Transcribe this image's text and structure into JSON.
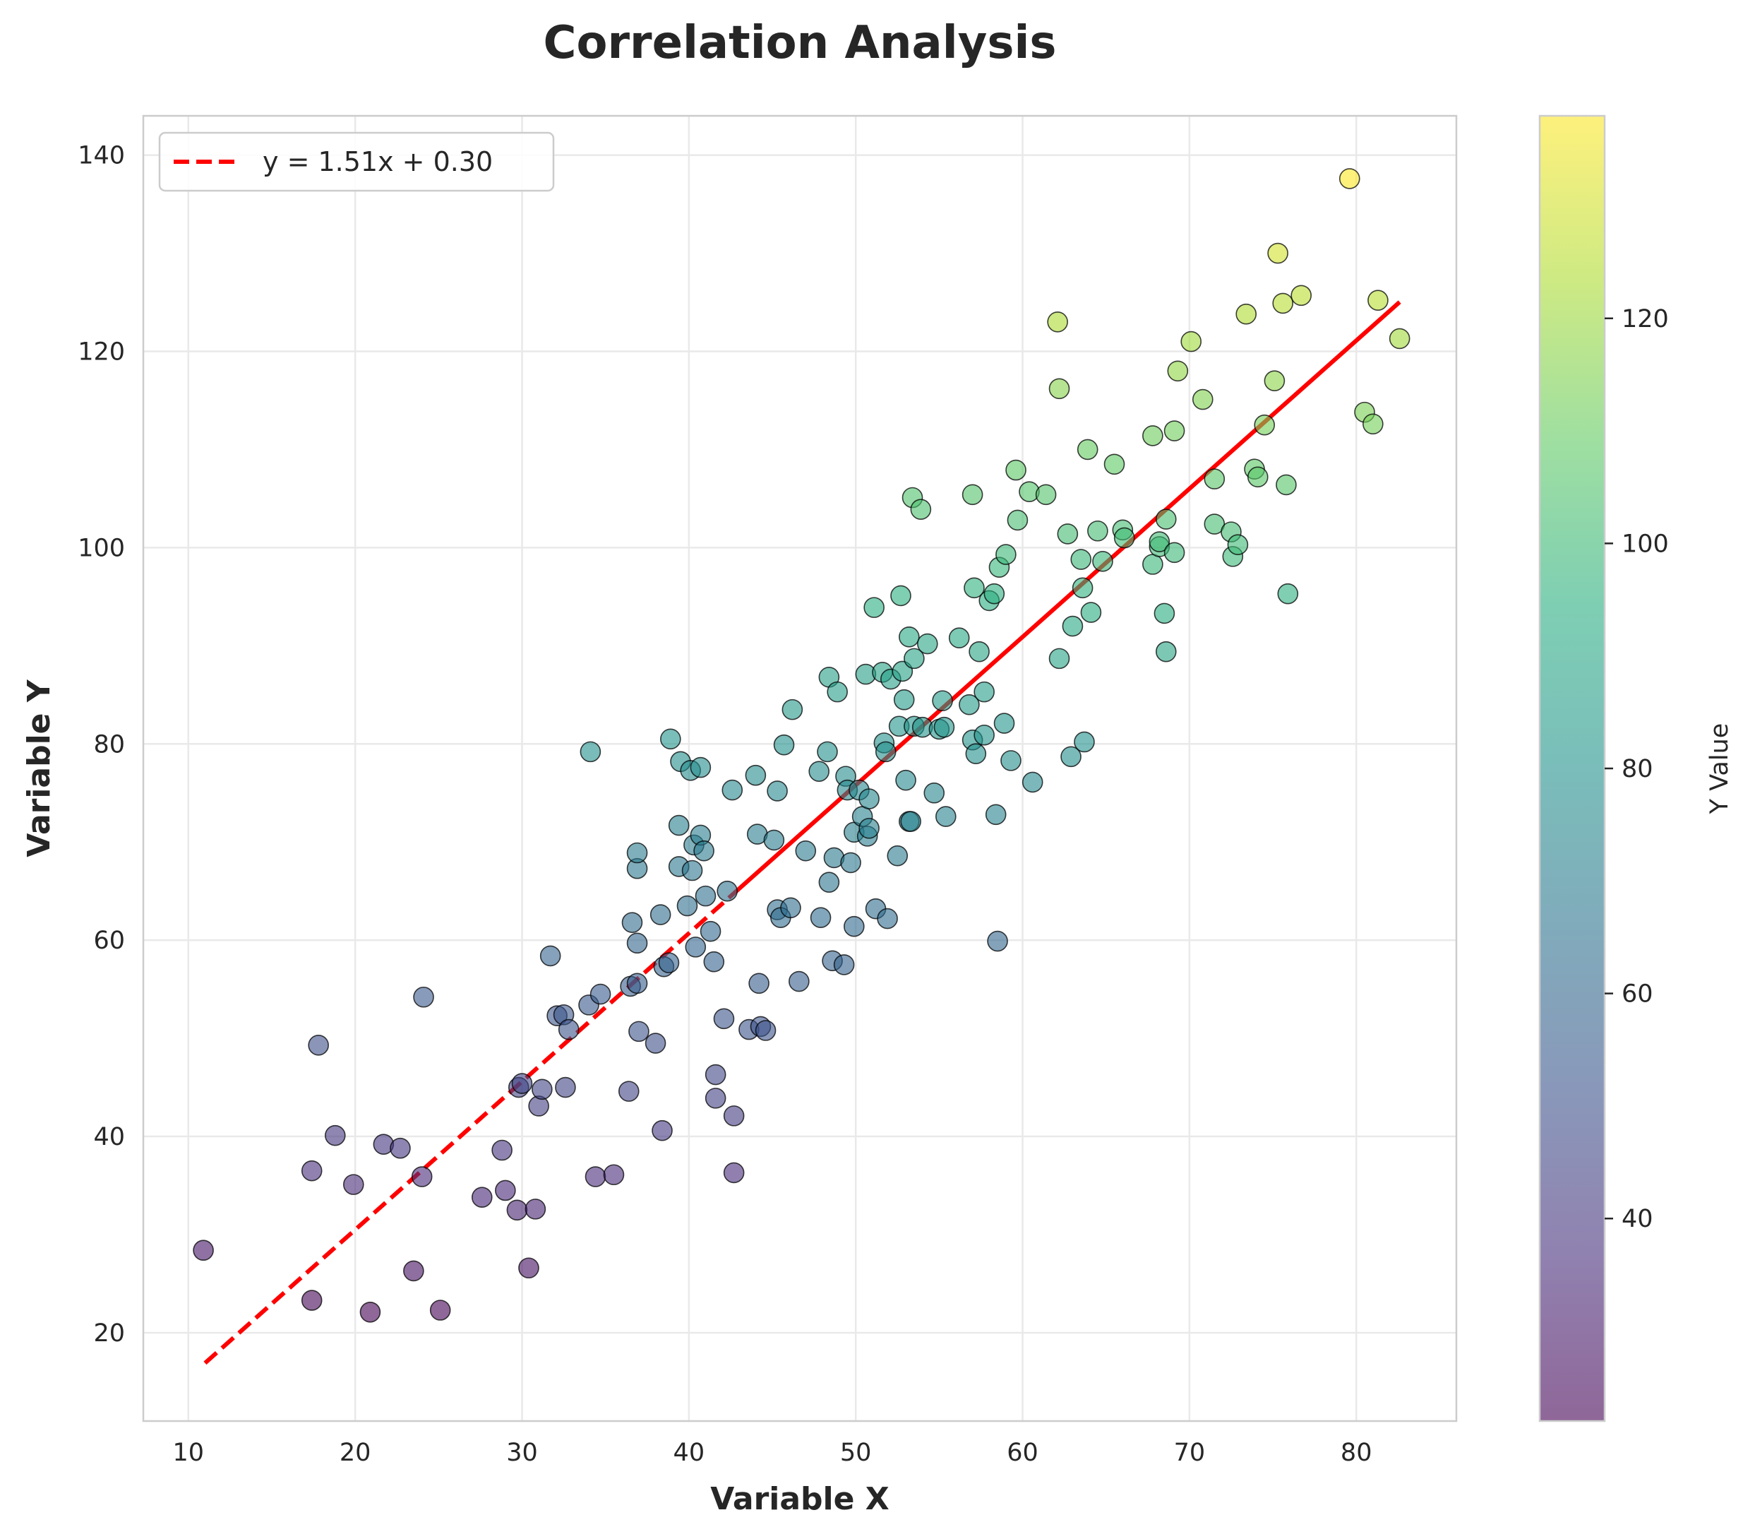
{
  "chart_data": {
    "type": "scatter",
    "title": "Correlation Analysis",
    "xlabel": "Variable X",
    "ylabel": "Variable Y",
    "xlim": [
      7.3,
      86
    ],
    "ylim": [
      11,
      144
    ],
    "x_ticks": [
      10,
      20,
      30,
      40,
      50,
      60,
      70,
      80
    ],
    "y_ticks": [
      20,
      40,
      60,
      80,
      100,
      120,
      140
    ],
    "grid": true,
    "legend": {
      "placement": "top-left",
      "entries": [
        "y = 1.51x + 0.30"
      ]
    },
    "fit_line": {
      "slope": 1.51,
      "intercept": 0.3,
      "x_range": [
        11,
        82.6
      ],
      "color": "#ff0000",
      "style": "dashed-then-solid"
    },
    "colorbar": {
      "label": "Y Value",
      "min": 22,
      "max": 138,
      "ticks": [
        40,
        60,
        80,
        100,
        120
      ],
      "colormap": "viridis"
    },
    "marker_alpha": 0.6,
    "points": [
      [
        10.9,
        28.4
      ],
      [
        17.4,
        36.5
      ],
      [
        17.4,
        23.3
      ],
      [
        17.8,
        49.3
      ],
      [
        18.8,
        40.1
      ],
      [
        19.9,
        35.1
      ],
      [
        20.9,
        22.1
      ],
      [
        21.7,
        39.2
      ],
      [
        22.7,
        38.8
      ],
      [
        23.5,
        26.3
      ],
      [
        24.0,
        35.9
      ],
      [
        24.1,
        54.2
      ],
      [
        25.1,
        22.3
      ],
      [
        27.6,
        33.8
      ],
      [
        28.8,
        38.6
      ],
      [
        29.0,
        34.5
      ],
      [
        29.7,
        32.5
      ],
      [
        29.8,
        45.0
      ],
      [
        30.0,
        45.4
      ],
      [
        30.4,
        26.6
      ],
      [
        30.8,
        32.6
      ],
      [
        31.0,
        43.1
      ],
      [
        31.2,
        44.8
      ],
      [
        31.7,
        58.4
      ],
      [
        32.1,
        52.3
      ],
      [
        32.5,
        52.4
      ],
      [
        32.6,
        45.0
      ],
      [
        32.8,
        50.9
      ],
      [
        34.0,
        53.4
      ],
      [
        34.1,
        79.2
      ],
      [
        34.4,
        35.9
      ],
      [
        34.7,
        54.5
      ],
      [
        35.5,
        36.1
      ],
      [
        36.4,
        44.6
      ],
      [
        36.5,
        55.3
      ],
      [
        36.6,
        61.8
      ],
      [
        36.9,
        59.7
      ],
      [
        36.9,
        55.6
      ],
      [
        36.9,
        67.3
      ],
      [
        36.9,
        68.9
      ],
      [
        37.0,
        50.7
      ],
      [
        38.0,
        49.5
      ],
      [
        38.3,
        62.6
      ],
      [
        38.4,
        40.6
      ],
      [
        38.5,
        57.3
      ],
      [
        38.8,
        57.7
      ],
      [
        38.9,
        80.5
      ],
      [
        39.4,
        71.7
      ],
      [
        39.4,
        67.5
      ],
      [
        39.5,
        78.2
      ],
      [
        39.9,
        63.5
      ],
      [
        40.1,
        77.3
      ],
      [
        40.2,
        67.1
      ],
      [
        40.3,
        69.7
      ],
      [
        40.4,
        59.3
      ],
      [
        40.7,
        70.7
      ],
      [
        40.7,
        77.6
      ],
      [
        40.9,
        69.1
      ],
      [
        41.0,
        64.5
      ],
      [
        41.3,
        60.9
      ],
      [
        41.5,
        57.8
      ],
      [
        41.6,
        46.3
      ],
      [
        41.6,
        43.9
      ],
      [
        42.1,
        52.0
      ],
      [
        42.3,
        65.0
      ],
      [
        42.6,
        75.3
      ],
      [
        42.7,
        42.1
      ],
      [
        42.7,
        36.3
      ],
      [
        43.6,
        50.9
      ],
      [
        44.0,
        76.8
      ],
      [
        44.1,
        70.8
      ],
      [
        44.2,
        55.6
      ],
      [
        44.3,
        51.2
      ],
      [
        44.6,
        50.8
      ],
      [
        45.1,
        70.2
      ],
      [
        45.3,
        75.2
      ],
      [
        45.3,
        63.1
      ],
      [
        45.5,
        62.3
      ],
      [
        45.7,
        79.9
      ],
      [
        46.1,
        63.3
      ],
      [
        46.2,
        83.5
      ],
      [
        46.6,
        55.8
      ],
      [
        47.0,
        69.1
      ],
      [
        47.8,
        77.2
      ],
      [
        47.9,
        62.3
      ],
      [
        48.3,
        79.2
      ],
      [
        48.4,
        65.9
      ],
      [
        48.4,
        86.8
      ],
      [
        48.6,
        57.9
      ],
      [
        48.7,
        68.4
      ],
      [
        48.9,
        85.3
      ],
      [
        49.3,
        57.5
      ],
      [
        49.4,
        76.7
      ],
      [
        49.5,
        75.3
      ],
      [
        49.7,
        67.9
      ],
      [
        49.9,
        61.4
      ],
      [
        49.9,
        71.0
      ],
      [
        50.2,
        75.3
      ],
      [
        50.4,
        72.6
      ],
      [
        50.6,
        87.1
      ],
      [
        50.7,
        70.6
      ],
      [
        50.8,
        74.4
      ],
      [
        50.8,
        71.4
      ],
      [
        51.1,
        93.9
      ],
      [
        51.2,
        63.2
      ],
      [
        51.6,
        87.3
      ],
      [
        51.7,
        80.1
      ],
      [
        51.8,
        79.2
      ],
      [
        51.9,
        62.2
      ],
      [
        52.1,
        86.6
      ],
      [
        52.5,
        68.6
      ],
      [
        52.6,
        81.8
      ],
      [
        52.7,
        95.1
      ],
      [
        52.8,
        87.4
      ],
      [
        52.9,
        84.5
      ],
      [
        53.0,
        76.3
      ],
      [
        53.2,
        90.9
      ],
      [
        53.2,
        72.1
      ],
      [
        53.3,
        72.1
      ],
      [
        53.4,
        105.1
      ],
      [
        53.5,
        81.8
      ],
      [
        53.5,
        88.7
      ],
      [
        53.9,
        103.9
      ],
      [
        54.0,
        81.7
      ],
      [
        54.3,
        90.2
      ],
      [
        54.7,
        75.0
      ],
      [
        55.0,
        81.5
      ],
      [
        55.2,
        84.4
      ],
      [
        55.3,
        81.7
      ],
      [
        55.4,
        72.6
      ],
      [
        56.2,
        90.8
      ],
      [
        56.8,
        84.0
      ],
      [
        57.0,
        105.4
      ],
      [
        57.0,
        80.4
      ],
      [
        57.1,
        95.9
      ],
      [
        57.2,
        79.0
      ],
      [
        57.4,
        89.4
      ],
      [
        57.7,
        85.3
      ],
      [
        57.7,
        80.9
      ],
      [
        58.0,
        94.6
      ],
      [
        58.3,
        95.3
      ],
      [
        58.4,
        72.8
      ],
      [
        58.5,
        59.9
      ],
      [
        58.6,
        98.0
      ],
      [
        58.9,
        82.1
      ],
      [
        59.0,
        99.3
      ],
      [
        59.3,
        78.3
      ],
      [
        59.6,
        107.9
      ],
      [
        59.7,
        102.8
      ],
      [
        60.4,
        105.7
      ],
      [
        60.6,
        76.1
      ],
      [
        61.4,
        105.4
      ],
      [
        62.1,
        123.0
      ],
      [
        62.2,
        88.7
      ],
      [
        62.2,
        116.2
      ],
      [
        62.7,
        101.4
      ],
      [
        62.9,
        78.7
      ],
      [
        63.0,
        92.0
      ],
      [
        63.5,
        98.8
      ],
      [
        63.6,
        95.9
      ],
      [
        63.7,
        80.2
      ],
      [
        63.9,
        110.0
      ],
      [
        64.1,
        93.4
      ],
      [
        64.5,
        101.7
      ],
      [
        64.8,
        98.6
      ],
      [
        65.5,
        108.5
      ],
      [
        66.0,
        101.8
      ],
      [
        66.1,
        101.0
      ],
      [
        67.8,
        111.4
      ],
      [
        67.8,
        98.3
      ],
      [
        68.2,
        100.1
      ],
      [
        68.2,
        100.6
      ],
      [
        68.5,
        93.3
      ],
      [
        68.6,
        89.4
      ],
      [
        68.6,
        102.9
      ],
      [
        69.1,
        111.9
      ],
      [
        69.1,
        99.5
      ],
      [
        69.3,
        118.0
      ],
      [
        70.1,
        121.0
      ],
      [
        70.8,
        115.1
      ],
      [
        71.5,
        107.0
      ],
      [
        71.5,
        102.4
      ],
      [
        72.5,
        101.6
      ],
      [
        72.6,
        99.1
      ],
      [
        72.9,
        100.3
      ],
      [
        73.4,
        123.8
      ],
      [
        73.9,
        108.0
      ],
      [
        74.1,
        107.2
      ],
      [
        74.5,
        112.5
      ],
      [
        75.1,
        117.0
      ],
      [
        75.3,
        130.0
      ],
      [
        75.6,
        124.9
      ],
      [
        75.8,
        106.4
      ],
      [
        75.9,
        95.3
      ],
      [
        76.7,
        125.7
      ],
      [
        79.6,
        137.6
      ],
      [
        80.5,
        113.8
      ],
      [
        81.0,
        112.6
      ],
      [
        81.3,
        125.2
      ],
      [
        82.6,
        121.3
      ]
    ]
  }
}
